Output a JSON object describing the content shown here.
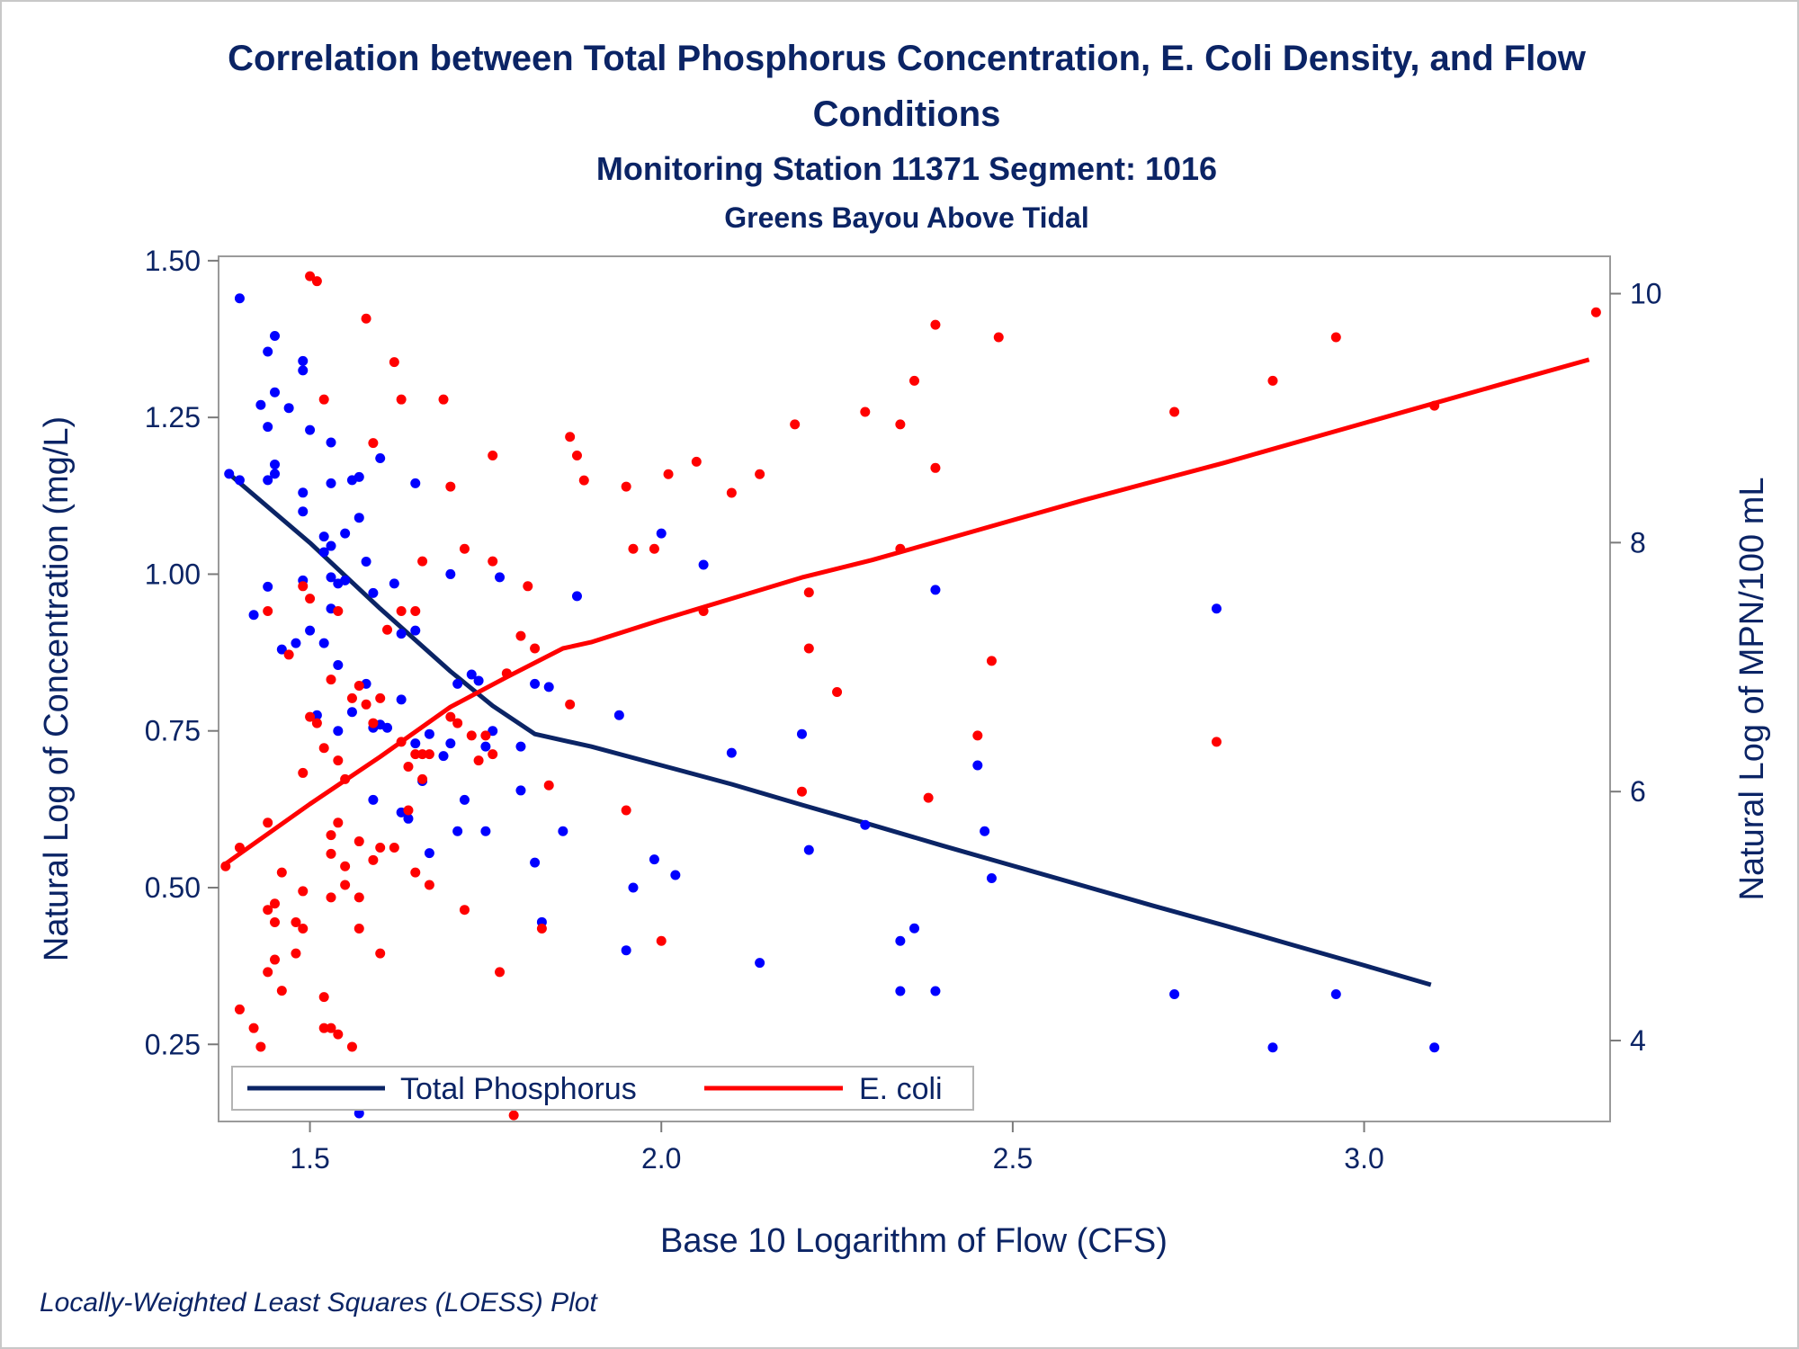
{
  "chart_data": {
    "type": "scatter",
    "title": "Correlation between Total Phosphorus Concentration, E. Coli Density, and Flow Conditions",
    "title_lines": [
      "Correlation between Total Phosphorus Concentration, E. Coli Density, and Flow",
      "Conditions"
    ],
    "subtitle": "Monitoring Station 11371 Segment: 1016",
    "subtitle2": "Greens Bayou Above Tidal",
    "footnote": "Locally-Weighted Least Squares (LOESS) Plot",
    "xlabel": "Base 10 Logarithm of Flow (CFS)",
    "ylabel_left": "Natural Log of Concentration (mg/L)",
    "ylabel_right": "Natural Log of MPN/100 mL",
    "xlim": [
      1.37,
      3.35
    ],
    "ylim_left": [
      0.127,
      1.507
    ],
    "ylim_right": [
      3.35,
      10.3
    ],
    "x_ticks": [
      "1.5",
      "2.0",
      "2.5",
      "3.0"
    ],
    "y_left_ticks": [
      "0.25",
      "0.50",
      "0.75",
      "1.00",
      "1.25",
      "1.50"
    ],
    "y_right_ticks": [
      "4",
      "6",
      "8",
      "10"
    ],
    "grid": false,
    "legend_position": "bottom-left inside",
    "colors": {
      "phosphorus": "#0b2465",
      "ecoli": "#ff0000",
      "phosphorus_points": "#0000ff",
      "text": "#0b2465"
    },
    "legend": [
      {
        "name": "Total Phosphorus",
        "color": "#0b2465"
      },
      {
        "name": "E. coli",
        "color": "#ff0000"
      }
    ],
    "series": [
      {
        "name": "Total Phosphorus",
        "axis": "left",
        "points": [
          [
            1.385,
            1.16
          ],
          [
            1.4,
            1.44
          ],
          [
            1.4,
            1.15
          ],
          [
            1.42,
            0.935
          ],
          [
            1.43,
            1.27
          ],
          [
            1.44,
            1.355
          ],
          [
            1.44,
            1.235
          ],
          [
            1.44,
            0.98
          ],
          [
            1.44,
            1.15
          ],
          [
            1.45,
            1.38
          ],
          [
            1.45,
            1.29
          ],
          [
            1.45,
            1.175
          ],
          [
            1.45,
            1.16
          ],
          [
            1.46,
            0.88
          ],
          [
            1.47,
            1.265
          ],
          [
            1.48,
            0.89
          ],
          [
            1.49,
            1.34
          ],
          [
            1.49,
            1.325
          ],
          [
            1.49,
            1.13
          ],
          [
            1.49,
            1.1
          ],
          [
            1.49,
            0.99
          ],
          [
            1.5,
            1.23
          ],
          [
            1.5,
            0.91
          ],
          [
            1.51,
            0.775
          ],
          [
            1.52,
            1.06
          ],
          [
            1.52,
            1.035
          ],
          [
            1.52,
            0.89
          ],
          [
            1.53,
            1.21
          ],
          [
            1.53,
            1.145
          ],
          [
            1.53,
            1.045
          ],
          [
            1.53,
            0.995
          ],
          [
            1.53,
            0.945
          ],
          [
            1.54,
            0.985
          ],
          [
            1.54,
            0.855
          ],
          [
            1.54,
            0.75
          ],
          [
            1.55,
            1.065
          ],
          [
            1.55,
            0.99
          ],
          [
            1.56,
            1.15
          ],
          [
            1.56,
            0.78
          ],
          [
            1.57,
            1.155
          ],
          [
            1.57,
            1.09
          ],
          [
            1.57,
            0.14
          ],
          [
            1.58,
            1.02
          ],
          [
            1.58,
            0.825
          ],
          [
            1.59,
            0.97
          ],
          [
            1.59,
            0.755
          ],
          [
            1.59,
            0.64
          ],
          [
            1.6,
            1.185
          ],
          [
            1.6,
            0.76
          ],
          [
            1.61,
            0.755
          ],
          [
            1.62,
            0.985
          ],
          [
            1.63,
            0.905
          ],
          [
            1.63,
            0.8
          ],
          [
            1.63,
            0.62
          ],
          [
            1.64,
            0.61
          ],
          [
            1.65,
            1.145
          ],
          [
            1.65,
            0.91
          ],
          [
            1.65,
            0.73
          ],
          [
            1.66,
            0.67
          ],
          [
            1.67,
            0.745
          ],
          [
            1.67,
            0.555
          ],
          [
            1.69,
            0.71
          ],
          [
            1.7,
            1.0
          ],
          [
            1.7,
            0.73
          ],
          [
            1.71,
            0.825
          ],
          [
            1.71,
            0.59
          ],
          [
            1.72,
            0.64
          ],
          [
            1.73,
            0.84
          ],
          [
            1.74,
            0.83
          ],
          [
            1.75,
            0.725
          ],
          [
            1.75,
            0.59
          ],
          [
            1.76,
            0.75
          ],
          [
            1.77,
            0.995
          ],
          [
            1.8,
            0.725
          ],
          [
            1.8,
            0.655
          ],
          [
            1.82,
            0.825
          ],
          [
            1.82,
            0.54
          ],
          [
            1.83,
            0.445
          ],
          [
            1.84,
            0.82
          ],
          [
            1.86,
            0.59
          ],
          [
            1.88,
            0.965
          ],
          [
            1.94,
            0.775
          ],
          [
            1.95,
            0.4
          ],
          [
            1.96,
            0.5
          ],
          [
            1.99,
            0.545
          ],
          [
            2.0,
            1.065
          ],
          [
            2.02,
            0.52
          ],
          [
            2.06,
            1.015
          ],
          [
            2.1,
            0.715
          ],
          [
            2.14,
            0.38
          ],
          [
            2.2,
            0.745
          ],
          [
            2.21,
            0.56
          ],
          [
            2.29,
            0.6
          ],
          [
            2.34,
            0.415
          ],
          [
            2.34,
            0.335
          ],
          [
            2.36,
            0.435
          ],
          [
            2.39,
            0.975
          ],
          [
            2.39,
            0.335
          ],
          [
            2.45,
            0.695
          ],
          [
            2.46,
            0.59
          ],
          [
            2.47,
            0.515
          ],
          [
            2.73,
            0.33
          ],
          [
            2.79,
            0.945
          ],
          [
            2.87,
            0.245
          ],
          [
            2.96,
            0.33
          ],
          [
            3.1,
            0.245
          ]
        ]
      },
      {
        "name": "E. coli",
        "axis": "right",
        "points": [
          [
            1.38,
            5.4
          ],
          [
            1.4,
            5.55
          ],
          [
            1.4,
            4.25
          ],
          [
            1.42,
            4.1
          ],
          [
            1.43,
            3.95
          ],
          [
            1.44,
            5.75
          ],
          [
            1.44,
            5.05
          ],
          [
            1.44,
            4.55
          ],
          [
            1.44,
            7.45
          ],
          [
            1.45,
            5.1
          ],
          [
            1.45,
            4.95
          ],
          [
            1.45,
            4.65
          ],
          [
            1.46,
            5.35
          ],
          [
            1.46,
            4.4
          ],
          [
            1.47,
            7.1
          ],
          [
            1.48,
            4.95
          ],
          [
            1.48,
            4.7
          ],
          [
            1.49,
            7.65
          ],
          [
            1.49,
            6.15
          ],
          [
            1.49,
            5.2
          ],
          [
            1.49,
            4.9
          ],
          [
            1.5,
            7.55
          ],
          [
            1.5,
            6.6
          ],
          [
            1.5,
            10.14
          ],
          [
            1.51,
            6.55
          ],
          [
            1.51,
            10.1
          ],
          [
            1.52,
            9.15
          ],
          [
            1.52,
            6.35
          ],
          [
            1.52,
            4.35
          ],
          [
            1.52,
            4.1
          ],
          [
            1.53,
            6.9
          ],
          [
            1.53,
            5.65
          ],
          [
            1.53,
            5.5
          ],
          [
            1.53,
            5.15
          ],
          [
            1.53,
            4.1
          ],
          [
            1.54,
            7.45
          ],
          [
            1.54,
            6.25
          ],
          [
            1.54,
            5.75
          ],
          [
            1.54,
            4.05
          ],
          [
            1.55,
            6.1
          ],
          [
            1.55,
            5.4
          ],
          [
            1.55,
            5.25
          ],
          [
            1.56,
            6.75
          ],
          [
            1.56,
            3.95
          ],
          [
            1.57,
            6.85
          ],
          [
            1.57,
            5.6
          ],
          [
            1.57,
            5.15
          ],
          [
            1.57,
            4.9
          ],
          [
            1.58,
            9.8
          ],
          [
            1.58,
            6.7
          ],
          [
            1.59,
            8.8
          ],
          [
            1.59,
            6.55
          ],
          [
            1.59,
            5.45
          ],
          [
            1.6,
            6.75
          ],
          [
            1.6,
            5.55
          ],
          [
            1.6,
            4.7
          ],
          [
            1.61,
            7.3
          ],
          [
            1.62,
            9.45
          ],
          [
            1.62,
            5.55
          ],
          [
            1.63,
            9.15
          ],
          [
            1.63,
            7.45
          ],
          [
            1.63,
            6.4
          ],
          [
            1.64,
            6.2
          ],
          [
            1.64,
            5.85
          ],
          [
            1.65,
            7.45
          ],
          [
            1.65,
            6.3
          ],
          [
            1.65,
            5.35
          ],
          [
            1.66,
            7.85
          ],
          [
            1.66,
            6.3
          ],
          [
            1.66,
            6.1
          ],
          [
            1.67,
            6.3
          ],
          [
            1.67,
            5.25
          ],
          [
            1.69,
            9.15
          ],
          [
            1.7,
            8.45
          ],
          [
            1.7,
            6.6
          ],
          [
            1.71,
            6.55
          ],
          [
            1.72,
            7.95
          ],
          [
            1.72,
            5.05
          ],
          [
            1.73,
            6.45
          ],
          [
            1.74,
            6.25
          ],
          [
            1.75,
            6.45
          ],
          [
            1.76,
            6.3
          ],
          [
            1.76,
            8.7
          ],
          [
            1.76,
            7.85
          ],
          [
            1.77,
            4.55
          ],
          [
            1.78,
            6.95
          ],
          [
            1.79,
            3.4
          ],
          [
            1.8,
            7.25
          ],
          [
            1.81,
            7.65
          ],
          [
            1.82,
            7.15
          ],
          [
            1.83,
            4.9
          ],
          [
            1.84,
            6.05
          ],
          [
            1.87,
            6.7
          ],
          [
            1.87,
            8.85
          ],
          [
            1.88,
            8.7
          ],
          [
            1.89,
            8.5
          ],
          [
            1.95,
            5.85
          ],
          [
            1.95,
            8.45
          ],
          [
            1.96,
            7.95
          ],
          [
            1.99,
            7.95
          ],
          [
            2.0,
            4.8
          ],
          [
            2.01,
            8.55
          ],
          [
            2.05,
            8.65
          ],
          [
            2.06,
            7.45
          ],
          [
            2.1,
            8.4
          ],
          [
            2.14,
            8.55
          ],
          [
            2.19,
            8.95
          ],
          [
            2.2,
            6.0
          ],
          [
            2.21,
            7.15
          ],
          [
            2.21,
            7.6
          ],
          [
            2.25,
            6.8
          ],
          [
            2.29,
            9.05
          ],
          [
            2.34,
            7.95
          ],
          [
            2.34,
            8.95
          ],
          [
            2.36,
            9.3
          ],
          [
            2.38,
            5.95
          ],
          [
            2.39,
            9.75
          ],
          [
            2.39,
            8.6
          ],
          [
            2.45,
            6.45
          ],
          [
            2.47,
            7.05
          ],
          [
            2.48,
            9.65
          ],
          [
            2.73,
            9.05
          ],
          [
            2.79,
            6.4
          ],
          [
            2.87,
            9.3
          ],
          [
            2.96,
            9.65
          ],
          [
            3.1,
            9.1
          ],
          [
            3.33,
            9.85
          ]
        ]
      }
    ],
    "loess": [
      {
        "name": "Total Phosphorus",
        "axis": "left",
        "x": [
          1.385,
          1.5,
          1.6,
          1.7,
          1.76,
          1.82,
          1.86,
          1.9,
          2.0,
          2.1,
          2.2,
          2.3,
          2.4,
          2.5,
          2.6,
          2.7,
          2.8,
          2.9,
          3.0,
          3.095
        ],
        "y": [
          1.16,
          1.05,
          0.945,
          0.845,
          0.79,
          0.745,
          0.735,
          0.725,
          0.695,
          0.665,
          0.632,
          0.6,
          0.567,
          0.535,
          0.503,
          0.471,
          0.44,
          0.408,
          0.376,
          0.345
        ]
      },
      {
        "name": "E. coli",
        "axis": "right",
        "x": [
          1.38,
          1.5,
          1.6,
          1.7,
          1.78,
          1.86,
          1.9,
          2.0,
          2.1,
          2.2,
          2.3,
          2.4,
          2.5,
          2.6,
          2.7,
          2.8,
          2.9,
          3.0,
          3.1,
          3.2,
          3.32
        ],
        "y": [
          5.42,
          5.9,
          6.28,
          6.68,
          6.92,
          7.15,
          7.2,
          7.38,
          7.55,
          7.72,
          7.86,
          8.02,
          8.18,
          8.34,
          8.49,
          8.64,
          8.8,
          8.96,
          9.12,
          9.28,
          9.47
        ]
      }
    ]
  }
}
